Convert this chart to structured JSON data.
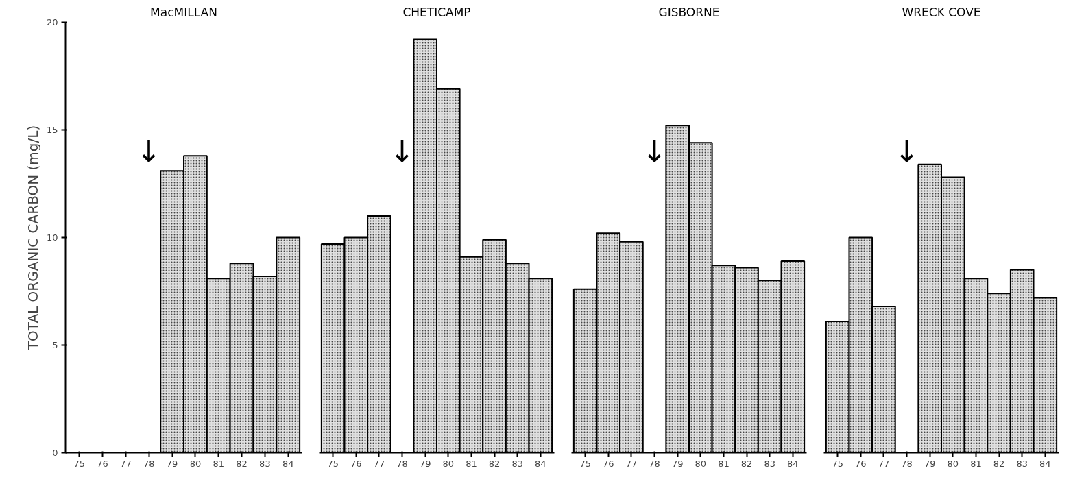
{
  "chart_data": [
    {
      "type": "bar",
      "title": "MacMILLAN",
      "ylabel": "TOTAL ORGANIC CARBON (mg/L)",
      "categories": [
        "75",
        "76",
        "77",
        "78",
        "79",
        "80",
        "81",
        "82",
        "83",
        "84"
      ],
      "values": [
        null,
        null,
        null,
        null,
        13.1,
        13.8,
        8.1,
        8.8,
        8.2,
        10.0
      ],
      "color": "#e0e0e0",
      "ylim": [
        0,
        20
      ],
      "yticks": [
        0,
        5,
        10,
        15,
        20
      ],
      "grid": false,
      "annotations": [
        "↓"
      ]
    },
    {
      "type": "bar",
      "title": "CHETICAMP",
      "categories": [
        "75",
        "76",
        "77",
        "78",
        "79",
        "80",
        "81",
        "82",
        "83",
        "84"
      ],
      "values": [
        9.7,
        10.0,
        11.0,
        null,
        19.2,
        16.9,
        9.1,
        9.9,
        8.8,
        8.1
      ],
      "color": "#e0e0e0",
      "ylim": [
        0,
        20
      ],
      "yticks": [
        0,
        5,
        10,
        15,
        20
      ],
      "grid": false,
      "tick_labels": "x",
      "annotations": [
        "↓"
      ]
    },
    {
      "type": "bar",
      "title": "GISBORNE",
      "categories": [
        "75",
        "76",
        "77",
        "78",
        "79",
        "80",
        "81",
        "82",
        "83",
        "84"
      ],
      "values": [
        7.6,
        10.2,
        9.8,
        null,
        15.2,
        14.4,
        8.7,
        8.6,
        8.0,
        8.9
      ],
      "color": "#e0e0e0",
      "ylim": [
        0,
        20
      ],
      "yticks": [
        0,
        5,
        10,
        15,
        20
      ],
      "grid": false,
      "tick_labels": "x",
      "annotations": [
        "↓"
      ]
    },
    {
      "type": "bar",
      "title": "WRECK COVE",
      "categories": [
        "75",
        "76",
        "77",
        "78",
        "79",
        "80",
        "81",
        "82",
        "83",
        "84"
      ],
      "values": [
        6.1,
        10.0,
        6.8,
        null,
        13.4,
        12.8,
        8.1,
        7.4,
        8.5,
        7.2
      ],
      "color": "#e0e0e0",
      "ylim": [
        0,
        20
      ],
      "yticks": [
        0,
        5,
        10,
        15,
        20
      ],
      "grid": false,
      "tick_labels": "x",
      "annotations": [
        "↓"
      ]
    }
  ]
}
